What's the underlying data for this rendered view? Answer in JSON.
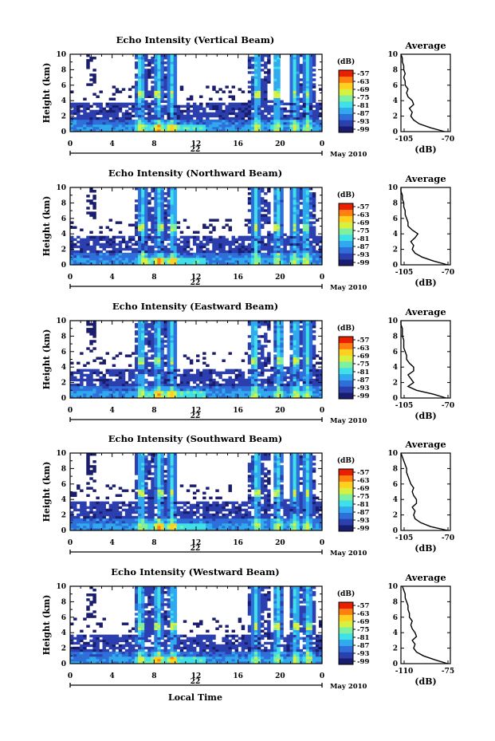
{
  "common": {
    "ylabel": "Height (km)",
    "yticks": [
      "0",
      "2",
      "4",
      "6",
      "8",
      "10"
    ],
    "xticks": [
      "0",
      "4",
      "8",
      "12",
      "16",
      "20",
      "0"
    ],
    "date_day": "22",
    "date_month": "May 2010",
    "colorbar_unit": "(dB)",
    "colorbar_ticks": [
      "-57",
      "-63",
      "-69",
      "-75",
      "-81",
      "-87",
      "-93",
      "-99"
    ],
    "avg_title": "Average",
    "avg_unit": "(dB)",
    "avg_yticks": [
      "0",
      "2",
      "4",
      "6",
      "8",
      "10"
    ],
    "xlabel": "Local Time",
    "colormap": [
      "#1a1d6e",
      "#2c3fae",
      "#2e6fd9",
      "#31a9ee",
      "#3fe0e8",
      "#7ff0a0",
      "#d8f040",
      "#ffd020",
      "#ff8010",
      "#e82000"
    ]
  },
  "chart_data": [
    {
      "type": "heatmap",
      "title": "Echo Intensity (Vertical Beam)",
      "xlabel": "",
      "ylabel": "Height (km)",
      "xlim": [
        0,
        24
      ],
      "ylim": [
        0,
        10
      ],
      "colorbar_range": [
        -99,
        -57
      ],
      "storm_hours": [
        6.7,
        8.4,
        9.7,
        17.8,
        19.7,
        21.4,
        22.6
      ],
      "average": {
        "type": "line",
        "title": "Average",
        "xlabel": "(dB)",
        "xtick_labels": [
          "-105",
          "-70"
        ],
        "xlim": [
          -105,
          -70
        ],
        "height_km": [
          0,
          0.5,
          1,
          1.5,
          2,
          2.5,
          3,
          3.5,
          4,
          4.5,
          5,
          5.5,
          6,
          6.5,
          7,
          7.5,
          8,
          8.5,
          9,
          9.5,
          10
        ],
        "db": [
          -74,
          -84,
          -92,
          -96,
          -98,
          -97,
          -99,
          -96,
          -97,
          -100,
          -101,
          -100,
          -102,
          -102,
          -103,
          -102,
          -103,
          -103,
          -104,
          -104,
          -105
        ]
      }
    },
    {
      "type": "heatmap",
      "title": "Echo Intensity (Northward Beam)",
      "xlabel": "",
      "ylabel": "Height (km)",
      "xlim": [
        0,
        24
      ],
      "ylim": [
        0,
        10
      ],
      "colorbar_range": [
        -99,
        -57
      ],
      "storm_hours": [
        6.9,
        8.5,
        9.8,
        17.7,
        19.8,
        21.4,
        22.5
      ],
      "average": {
        "type": "line",
        "title": "Average",
        "xlabel": "(dB)",
        "xtick_labels": [
          "-105",
          "-70"
        ],
        "xlim": [
          -105,
          -70
        ],
        "height_km": [
          0,
          0.5,
          1,
          1.5,
          2,
          2.5,
          3,
          3.5,
          4,
          4.5,
          5,
          5.5,
          6,
          6.5,
          7,
          7.5,
          8,
          8.5,
          9,
          9.5,
          10
        ],
        "db": [
          -72,
          -82,
          -90,
          -95,
          -97,
          -96,
          -98,
          -95,
          -93,
          -97,
          -100,
          -100,
          -101,
          -102,
          -102,
          -103,
          -103,
          -104,
          -104,
          -105,
          -105
        ]
      }
    },
    {
      "type": "heatmap",
      "title": "Echo Intensity (Eastward Beam)",
      "xlabel": "",
      "ylabel": "Height (km)",
      "xlim": [
        0,
        24
      ],
      "ylim": [
        0,
        10
      ],
      "colorbar_range": [
        -99,
        -57
      ],
      "storm_hours": [
        6.8,
        8.4,
        9.7,
        17.6,
        19.9,
        21.5,
        22.6
      ],
      "average": {
        "type": "line",
        "title": "Average",
        "xlabel": "(dB)",
        "xtick_labels": [
          "-105",
          "-70"
        ],
        "xlim": [
          -105,
          -70
        ],
        "height_km": [
          0,
          0.5,
          1,
          1.5,
          2,
          2.5,
          3,
          3.5,
          4,
          4.5,
          5,
          5.5,
          6,
          6.5,
          7,
          7.5,
          8,
          8.5,
          9,
          9.5,
          10
        ],
        "db": [
          -73,
          -82,
          -94,
          -100,
          -96,
          -98,
          -100,
          -96,
          -96,
          -99,
          -101,
          -101,
          -102,
          -103,
          -103,
          -103,
          -104,
          -104,
          -104,
          -105,
          -105
        ]
      }
    },
    {
      "type": "heatmap",
      "title": "Echo Intensity (Southward Beam)",
      "xlabel": "",
      "ylabel": "Height (km)",
      "xlim": [
        0,
        24
      ],
      "ylim": [
        0,
        10
      ],
      "colorbar_range": [
        -99,
        -57
      ],
      "storm_hours": [
        6.8,
        8.5,
        9.7,
        17.8,
        19.8,
        21.4,
        22.6
      ],
      "average": {
        "type": "line",
        "title": "Average",
        "xlabel": "(dB)",
        "xtick_labels": [
          "-105",
          "-70"
        ],
        "xlim": [
          -105,
          -70
        ],
        "height_km": [
          0,
          0.5,
          1,
          1.5,
          2,
          2.5,
          3,
          3.5,
          4,
          4.5,
          5,
          5.5,
          6,
          6.5,
          7,
          7.5,
          8,
          8.5,
          9,
          9.5,
          10
        ],
        "db": [
          -72,
          -84,
          -91,
          -95,
          -96,
          -95,
          -97,
          -94,
          -94,
          -96,
          -97,
          -96,
          -98,
          -99,
          -100,
          -101,
          -101,
          -102,
          -103,
          -104,
          -105
        ]
      }
    },
    {
      "type": "heatmap",
      "title": "Echo Intensity (Westward Beam)",
      "xlabel": "Local Time",
      "ylabel": "Height (km)",
      "xlim": [
        0,
        24
      ],
      "ylim": [
        0,
        10
      ],
      "colorbar_range": [
        -99,
        -57
      ],
      "storm_hours": [
        6.7,
        8.4,
        9.8,
        17.7,
        19.8,
        21.5,
        22.7
      ],
      "average": {
        "type": "line",
        "title": "Average",
        "xlabel": "(dB)",
        "xtick_labels": [
          "-110",
          "-75"
        ],
        "xlim": [
          -110,
          -75
        ],
        "height_km": [
          0,
          0.5,
          1,
          1.5,
          2,
          2.5,
          3,
          3.5,
          4,
          4.5,
          5,
          5.5,
          6,
          6.5,
          7,
          7.5,
          8,
          8.5,
          9,
          9.5,
          10
        ],
        "db": [
          -77,
          -86,
          -94,
          -99,
          -101,
          -100,
          -102,
          -99,
          -100,
          -102,
          -103,
          -102,
          -104,
          -104,
          -105,
          -105,
          -106,
          -107,
          -107,
          -108,
          -109
        ]
      }
    }
  ]
}
